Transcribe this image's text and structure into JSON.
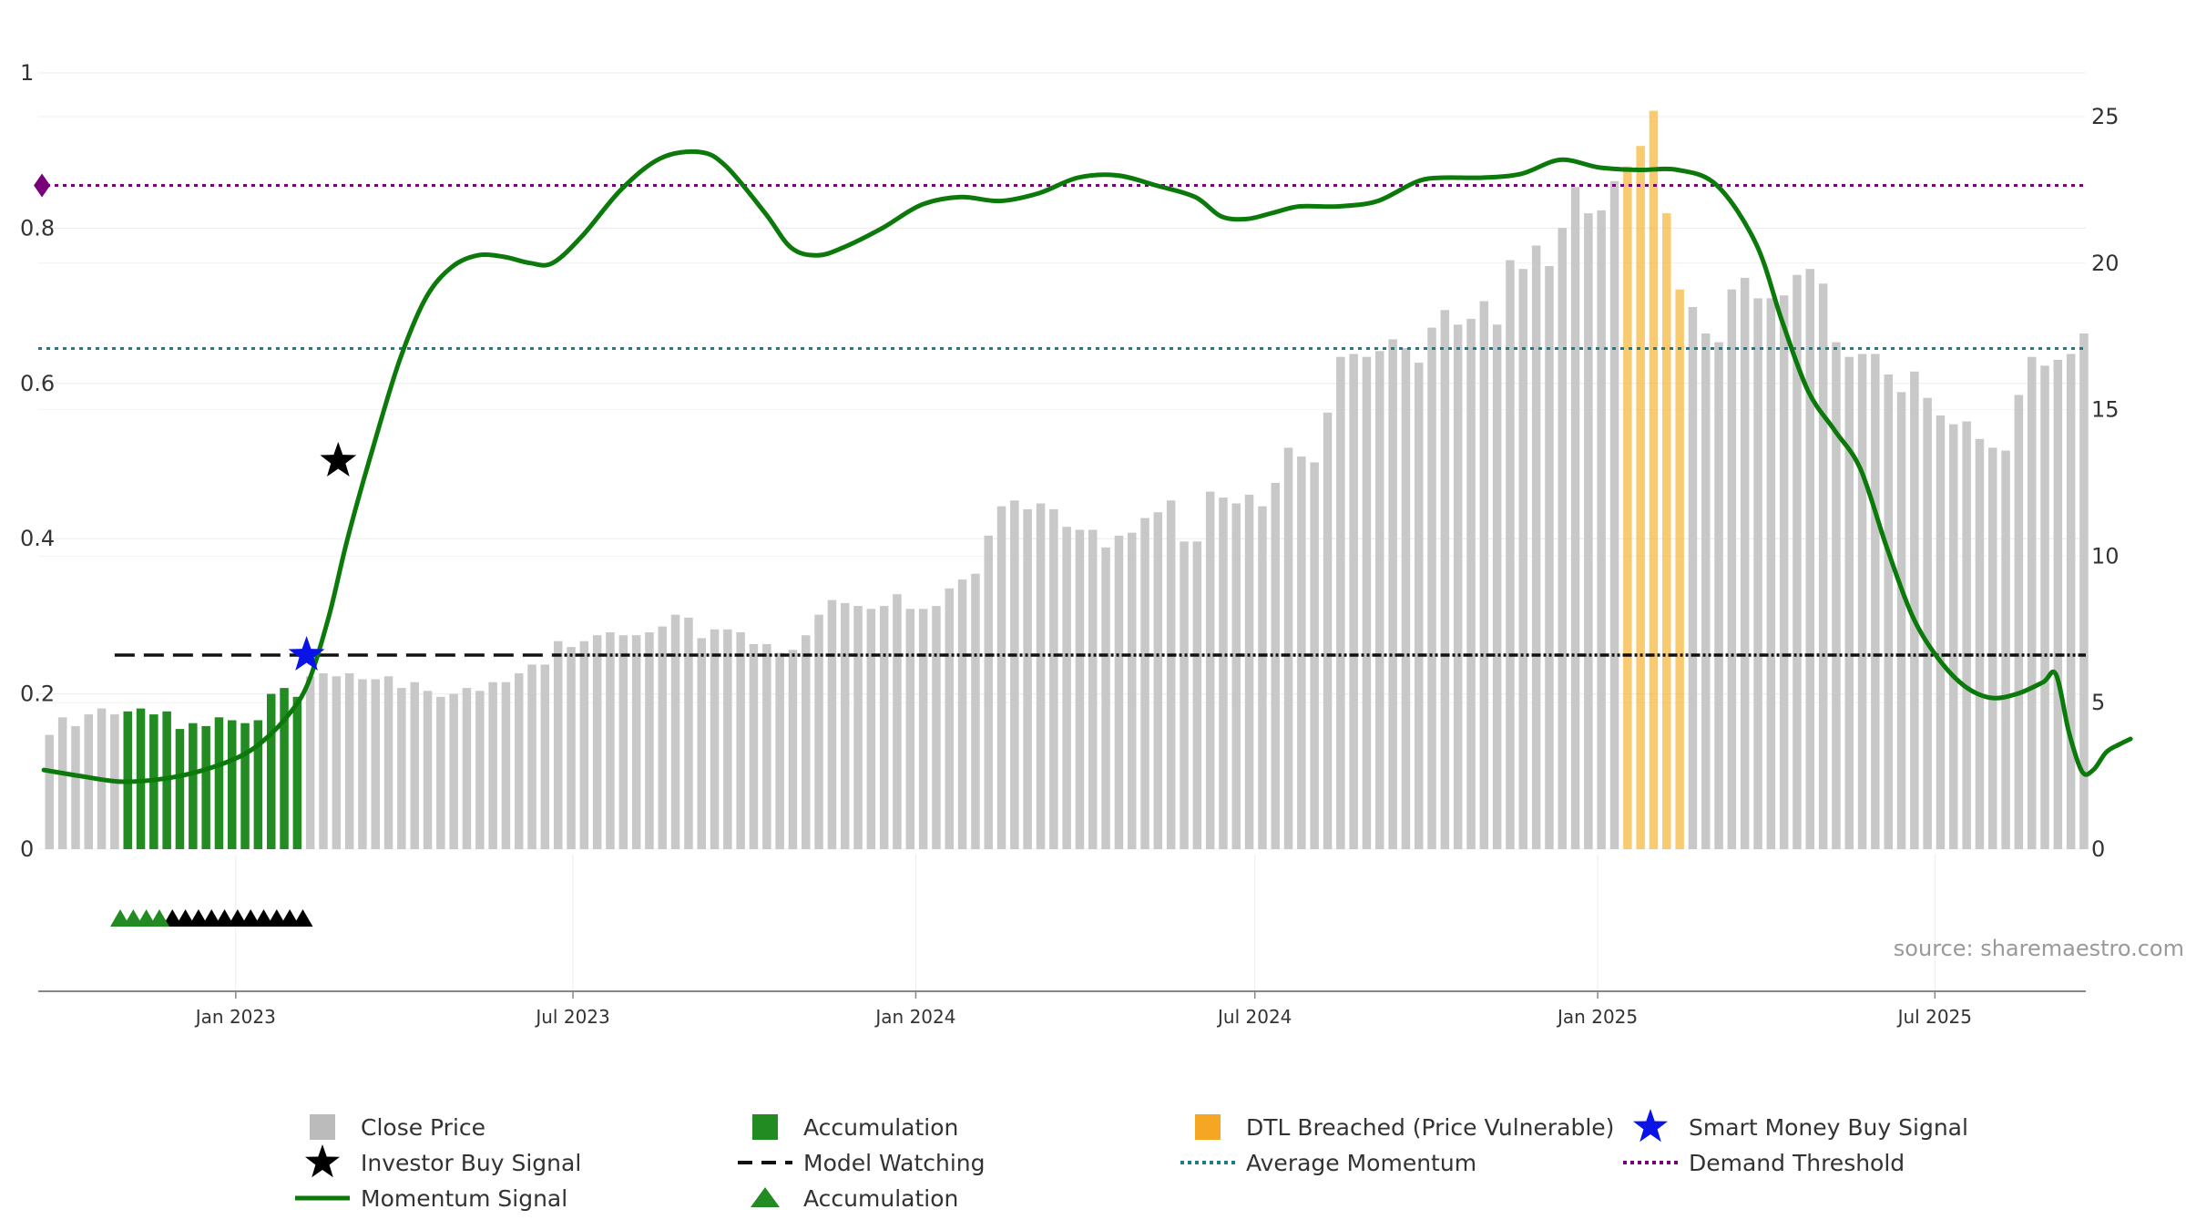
{
  "chart_data": {
    "type": "bar+line",
    "source": "source: sharemaestro.com",
    "left_axis": {
      "range": [
        0,
        1
      ],
      "ticks": [
        0,
        0.2,
        0.4,
        0.6,
        0.8,
        1
      ],
      "tick_labels": [
        "0",
        "0.2",
        "0.4",
        "0.6",
        "0.8",
        "1"
      ]
    },
    "right_axis": {
      "range": [
        0,
        25
      ],
      "ticks": [
        0,
        5,
        10,
        15,
        20,
        25
      ],
      "tick_labels": [
        "0",
        "5",
        "10",
        "15",
        "20",
        "25"
      ]
    },
    "x_ticks": [
      {
        "label": "Jan 2023",
        "date": "2023-01-01"
      },
      {
        "label": "Jul 2023",
        "date": "2023-07-01"
      },
      {
        "label": "Jan 2024",
        "date": "2024-01-01"
      },
      {
        "label": "Jul 2024",
        "date": "2024-07-01"
      },
      {
        "label": "Jan 2025",
        "date": "2025-01-01"
      },
      {
        "label": "Jul 2025",
        "date": "2025-07-01"
      }
    ],
    "date_range": [
      "2022-09-17",
      "2025-09-20"
    ],
    "close_price": {
      "start_date": "2022-09-23",
      "interval_days": 7,
      "values": [
        3.9,
        4.5,
        4.2,
        4.6,
        4.8,
        4.6,
        4.7,
        4.8,
        4.6,
        4.7,
        4.1,
        4.3,
        4.2,
        4.5,
        4.4,
        4.3,
        4.4,
        5.3,
        5.5,
        5.2,
        5.9,
        6.0,
        5.9,
        6.0,
        5.8,
        5.8,
        5.9,
        5.5,
        5.7,
        5.4,
        5.2,
        5.3,
        5.5,
        5.4,
        5.7,
        5.7,
        6.0,
        6.3,
        6.3,
        7.1,
        6.9,
        7.1,
        7.3,
        7.4,
        7.3,
        7.3,
        7.4,
        7.6,
        8.0,
        7.9,
        7.2,
        7.5,
        7.5,
        7.4,
        7.0,
        7.0,
        6.7,
        6.8,
        7.3,
        8.0,
        8.5,
        8.4,
        8.3,
        8.2,
        8.3,
        8.7,
        8.2,
        8.2,
        8.3,
        8.9,
        9.2,
        9.4,
        10.7,
        11.7,
        11.9,
        11.6,
        11.8,
        11.6,
        11.0,
        10.9,
        10.9,
        10.3,
        10.7,
        10.8,
        11.3,
        11.5,
        11.9,
        10.5,
        10.5,
        12.2,
        12.0,
        11.8,
        12.1,
        11.7,
        12.5,
        13.7,
        13.4,
        13.2,
        14.9,
        16.8,
        16.9,
        16.8,
        17.0,
        17.4,
        17.1,
        16.6,
        17.8,
        18.4,
        17.9,
        18.1,
        18.7,
        17.9,
        20.1,
        19.8,
        20.6,
        19.9,
        21.2,
        22.6,
        21.7,
        21.8,
        22.8,
        23.3,
        24.0,
        25.2,
        21.7,
        19.1,
        18.5,
        17.6,
        17.3,
        19.1,
        19.5,
        18.8,
        18.8,
        18.9,
        19.6,
        19.8,
        19.3,
        17.3,
        16.8,
        16.9,
        16.9,
        16.2,
        15.6,
        16.3,
        15.4,
        14.8,
        14.5,
        14.6,
        14.0,
        13.7,
        13.6,
        15.5,
        16.8,
        16.5,
        16.7,
        16.9,
        17.6
      ]
    },
    "accumulation_bars": {
      "from_date": "2022-11-04",
      "to_date": "2023-02-03"
    },
    "dtl_breached_bars": {
      "from_date": "2025-01-17",
      "to_date": "2025-02-14"
    },
    "momentum_signal": {
      "points": [
        [
          "2022-09-20",
          0.102
        ],
        [
          "2022-10-10",
          0.094
        ],
        [
          "2022-10-31",
          0.087
        ],
        [
          "2022-11-21",
          0.09
        ],
        [
          "2022-12-12",
          0.1
        ],
        [
          "2023-01-02",
          0.118
        ],
        [
          "2023-01-16",
          0.14
        ],
        [
          "2023-01-30",
          0.175
        ],
        [
          "2023-02-09",
          0.215
        ],
        [
          "2023-02-20",
          0.3
        ],
        [
          "2023-03-02",
          0.4
        ],
        [
          "2023-03-16",
          0.52
        ],
        [
          "2023-03-30",
          0.63
        ],
        [
          "2023-04-13",
          0.71
        ],
        [
          "2023-04-27",
          0.75
        ],
        [
          "2023-05-11",
          0.765
        ],
        [
          "2023-05-25",
          0.763
        ],
        [
          "2023-06-08",
          0.755
        ],
        [
          "2023-06-20",
          0.755
        ],
        [
          "2023-07-06",
          0.79
        ],
        [
          "2023-07-27",
          0.85
        ],
        [
          "2023-08-17",
          0.89
        ],
        [
          "2023-09-07",
          0.898
        ],
        [
          "2023-09-21",
          0.88
        ],
        [
          "2023-10-12",
          0.82
        ],
        [
          "2023-10-26",
          0.775
        ],
        [
          "2023-11-09",
          0.765
        ],
        [
          "2023-11-23",
          0.775
        ],
        [
          "2023-12-14",
          0.8
        ],
        [
          "2024-01-04",
          0.83
        ],
        [
          "2024-01-25",
          0.84
        ],
        [
          "2024-02-15",
          0.835
        ],
        [
          "2024-03-07",
          0.845
        ],
        [
          "2024-03-28",
          0.865
        ],
        [
          "2024-04-18",
          0.868
        ],
        [
          "2024-05-09",
          0.855
        ],
        [
          "2024-05-30",
          0.84
        ],
        [
          "2024-06-13",
          0.815
        ],
        [
          "2024-06-27",
          0.812
        ],
        [
          "2024-07-11",
          0.82
        ],
        [
          "2024-07-25",
          0.828
        ],
        [
          "2024-08-15",
          0.828
        ],
        [
          "2024-09-05",
          0.835
        ],
        [
          "2024-09-26",
          0.86
        ],
        [
          "2024-10-10",
          0.865
        ],
        [
          "2024-10-31",
          0.865
        ],
        [
          "2024-11-21",
          0.87
        ],
        [
          "2024-12-12",
          0.888
        ],
        [
          "2025-01-02",
          0.878
        ],
        [
          "2025-01-23",
          0.875
        ],
        [
          "2025-02-13",
          0.875
        ],
        [
          "2025-03-06",
          0.855
        ],
        [
          "2025-03-27",
          0.78
        ],
        [
          "2025-04-10",
          0.68
        ],
        [
          "2025-04-24",
          0.59
        ],
        [
          "2025-05-08",
          0.54
        ],
        [
          "2025-05-22",
          0.49
        ],
        [
          "2025-06-05",
          0.39
        ],
        [
          "2025-06-19",
          0.3
        ],
        [
          "2025-07-03",
          0.245
        ],
        [
          "2025-07-17",
          0.21
        ],
        [
          "2025-07-31",
          0.195
        ],
        [
          "2025-08-14",
          0.2
        ],
        [
          "2025-08-28",
          0.215
        ],
        [
          "2025-09-04",
          0.225
        ],
        [
          "2025-09-11",
          0.15
        ],
        [
          "2025-09-18",
          0.1
        ],
        [
          "2025-09-24",
          0.102
        ],
        [
          "2025-10-01",
          0.125
        ],
        [
          "2025-10-08",
          0.135
        ],
        [
          "2025-10-14",
          0.142
        ]
      ]
    },
    "average_momentum": 0.645,
    "demand_threshold": 0.855,
    "model_watching": {
      "level": 0.25,
      "from_date": "2022-10-28"
    },
    "investor_buy_signal": {
      "date": "2023-02-25",
      "value": 0.5
    },
    "smart_money_buy_signal": {
      "date": "2023-02-08",
      "value": 0.25
    },
    "demand_threshold_marker": {
      "date": "2022-09-19",
      "value": 0.855
    },
    "accumulation_markers": [
      "2022-10-31",
      "2022-11-07",
      "2022-11-14",
      "2022-11-21"
    ],
    "investor_markers": [
      "2022-11-28",
      "2022-12-05",
      "2022-12-12",
      "2022-12-19",
      "2022-12-26",
      "2023-01-02",
      "2023-01-09",
      "2023-01-16",
      "2023-01-23",
      "2023-01-30",
      "2023-02-06"
    ],
    "colors": {
      "close_price": "#c8c8c8",
      "accumulation": "#228b22",
      "dtl_breached": "#f5b942",
      "momentum": "#0b7a0b",
      "investor_buy": "#000000",
      "smart_money": "#0a14e6",
      "average_momentum": "#1f7a8c",
      "demand_threshold": "#7a007a",
      "model_watching": "#111111"
    },
    "legend": [
      {
        "label": "Close Price",
        "symbol": "square",
        "color": "#bbbbbb"
      },
      {
        "label": "Accumulation",
        "symbol": "square",
        "color": "#228b22"
      },
      {
        "label": "DTL Breached (Price Vulnerable)",
        "symbol": "square",
        "color": "#f5a623"
      },
      {
        "label": "Smart Money Buy Signal",
        "symbol": "star",
        "color": "#0a14e6"
      },
      {
        "label": "Investor Buy Signal",
        "symbol": "star",
        "color": "#000000"
      },
      {
        "label": "Model Watching",
        "symbol": "dash",
        "color": "#111111"
      },
      {
        "label": "Average Momentum",
        "symbol": "dot",
        "color": "#1f7a8c"
      },
      {
        "label": "Demand Threshold",
        "symbol": "dot",
        "color": "#7a007a"
      },
      {
        "label": "Momentum Signal",
        "symbol": "line",
        "color": "#0b7a0b"
      },
      {
        "label": "Accumulation",
        "symbol": "triangle",
        "color": "#228b22"
      }
    ]
  }
}
